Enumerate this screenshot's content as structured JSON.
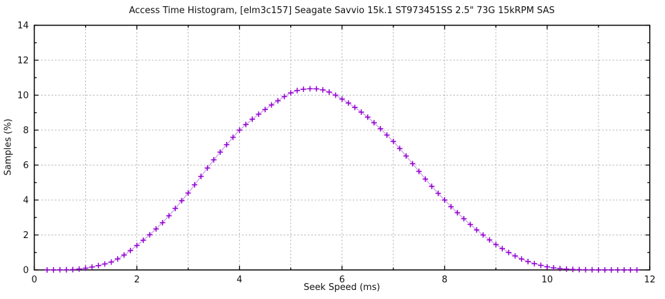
{
  "chart": {
    "title": "Access Time Histogram, [elm3c157] Seagate Savvio 15k.1 ST973451SS 2.5\" 73G 15kRPM SAS",
    "xlabel": "Seek Speed (ms)",
    "ylabel": "Samples (%)"
  },
  "chart_data": {
    "type": "line",
    "marker": "plus",
    "title": "Access Time Histogram, [elm3c157] Seagate Savvio 15k.1 ST973451SS 2.5\" 73G 15kRPM SAS",
    "xlabel": "Seek Speed (ms)",
    "ylabel": "Samples (%)",
    "xlim": [
      0,
      12
    ],
    "ylim": [
      0,
      14
    ],
    "x_major_ticks": [
      0,
      2,
      4,
      6,
      8,
      10,
      12
    ],
    "x_minor_ticks": [
      1,
      3,
      5,
      7,
      9,
      11
    ],
    "y_major_ticks": [
      0,
      2,
      4,
      6,
      8,
      10,
      12,
      14
    ],
    "y_minor_ticks": [
      1,
      3,
      5,
      7,
      9,
      11,
      13
    ],
    "grid": {
      "style": "dotted",
      "x_every": 1,
      "y_every": 2,
      "color": "#a9a9a9"
    },
    "colors": {
      "marker": "#9400d3",
      "line": "#c490e4",
      "border": "#000000"
    },
    "legend": "none",
    "points": [
      [
        0.25,
        0.0
      ],
      [
        0.375,
        0.0
      ],
      [
        0.5,
        0.01
      ],
      [
        0.625,
        0.01
      ],
      [
        0.75,
        0.02
      ],
      [
        0.875,
        0.05
      ],
      [
        1.0,
        0.1
      ],
      [
        1.125,
        0.17
      ],
      [
        1.25,
        0.25
      ],
      [
        1.375,
        0.34
      ],
      [
        1.5,
        0.45
      ],
      [
        1.625,
        0.63
      ],
      [
        1.75,
        0.85
      ],
      [
        1.875,
        1.11
      ],
      [
        2.0,
        1.4
      ],
      [
        2.125,
        1.7
      ],
      [
        2.25,
        2.01
      ],
      [
        2.375,
        2.35
      ],
      [
        2.5,
        2.7
      ],
      [
        2.625,
        3.1
      ],
      [
        2.75,
        3.52
      ],
      [
        2.875,
        3.96
      ],
      [
        3.0,
        4.4
      ],
      [
        3.125,
        4.87
      ],
      [
        3.25,
        5.35
      ],
      [
        3.375,
        5.83
      ],
      [
        3.5,
        6.3
      ],
      [
        3.625,
        6.74
      ],
      [
        3.75,
        7.17
      ],
      [
        3.875,
        7.59
      ],
      [
        4.0,
        8.0
      ],
      [
        4.125,
        8.32
      ],
      [
        4.25,
        8.62
      ],
      [
        4.375,
        8.91
      ],
      [
        4.5,
        9.18
      ],
      [
        4.625,
        9.44
      ],
      [
        4.75,
        9.68
      ],
      [
        4.875,
        9.92
      ],
      [
        5.0,
        10.13
      ],
      [
        5.125,
        10.27
      ],
      [
        5.25,
        10.34
      ],
      [
        5.375,
        10.37
      ],
      [
        5.5,
        10.36
      ],
      [
        5.625,
        10.3
      ],
      [
        5.75,
        10.18
      ],
      [
        5.875,
        10.0
      ],
      [
        6.0,
        9.78
      ],
      [
        6.125,
        9.55
      ],
      [
        6.25,
        9.3
      ],
      [
        6.375,
        9.03
      ],
      [
        6.5,
        8.74
      ],
      [
        6.625,
        8.42
      ],
      [
        6.75,
        8.08
      ],
      [
        6.875,
        7.72
      ],
      [
        7.0,
        7.35
      ],
      [
        7.125,
        6.95
      ],
      [
        7.25,
        6.52
      ],
      [
        7.375,
        6.08
      ],
      [
        7.5,
        5.64
      ],
      [
        7.625,
        5.2
      ],
      [
        7.75,
        4.78
      ],
      [
        7.875,
        4.38
      ],
      [
        8.0,
        4.0
      ],
      [
        8.125,
        3.62
      ],
      [
        8.25,
        3.27
      ],
      [
        8.375,
        2.93
      ],
      [
        8.5,
        2.6
      ],
      [
        8.625,
        2.29
      ],
      [
        8.75,
        2.0
      ],
      [
        8.875,
        1.72
      ],
      [
        9.0,
        1.45
      ],
      [
        9.125,
        1.22
      ],
      [
        9.25,
        1.0
      ],
      [
        9.375,
        0.8
      ],
      [
        9.5,
        0.62
      ],
      [
        9.625,
        0.48
      ],
      [
        9.75,
        0.36
      ],
      [
        9.875,
        0.26
      ],
      [
        10.0,
        0.18
      ],
      [
        10.125,
        0.12
      ],
      [
        10.25,
        0.08
      ],
      [
        10.375,
        0.05
      ],
      [
        10.5,
        0.03
      ],
      [
        10.625,
        0.02
      ],
      [
        10.75,
        0.01
      ],
      [
        10.875,
        0.01
      ],
      [
        11.0,
        0.0
      ],
      [
        11.125,
        0.0
      ],
      [
        11.25,
        0.0
      ],
      [
        11.375,
        0.0
      ],
      [
        11.5,
        0.0
      ],
      [
        11.625,
        0.0
      ],
      [
        11.75,
        0.0
      ]
    ]
  }
}
